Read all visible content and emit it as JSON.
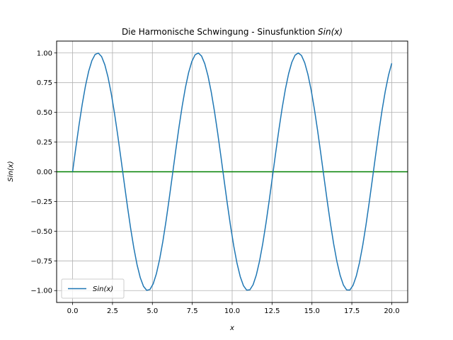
{
  "chart_data": {
    "type": "line",
    "title": "Die Harmonische Schwingung - Sinusfunktion",
    "title_math": "Sin(x)",
    "xlabel": "x",
    "ylabel": "Sin(x)",
    "xlim": [
      -1.0,
      21.0
    ],
    "ylim": [
      -1.1,
      1.1
    ],
    "xticks": [
      0.0,
      2.5,
      5.0,
      7.5,
      10.0,
      12.5,
      15.0,
      17.5,
      20.0
    ],
    "xtick_labels": [
      "0.0",
      "2.5",
      "5.0",
      "7.5",
      "10.0",
      "12.5",
      "15.0",
      "17.5",
      "20.0"
    ],
    "yticks": [
      -1.0,
      -0.75,
      -0.5,
      -0.25,
      0.0,
      0.25,
      0.5,
      0.75,
      1.0
    ],
    "ytick_labels": [
      "−1.00",
      "−0.75",
      "−0.50",
      "−0.25",
      "0.00",
      "0.25",
      "0.50",
      "0.75",
      "1.00"
    ],
    "grid": true,
    "legend_position": "lower-left",
    "series": [
      {
        "name": "Sin(x)",
        "color": "#1f77b4",
        "function": "sin",
        "x_range": [
          0,
          20
        ],
        "samples": 100
      }
    ],
    "reference_lines": [
      {
        "type": "horizontal",
        "y": 0,
        "color": "#008000"
      }
    ]
  }
}
